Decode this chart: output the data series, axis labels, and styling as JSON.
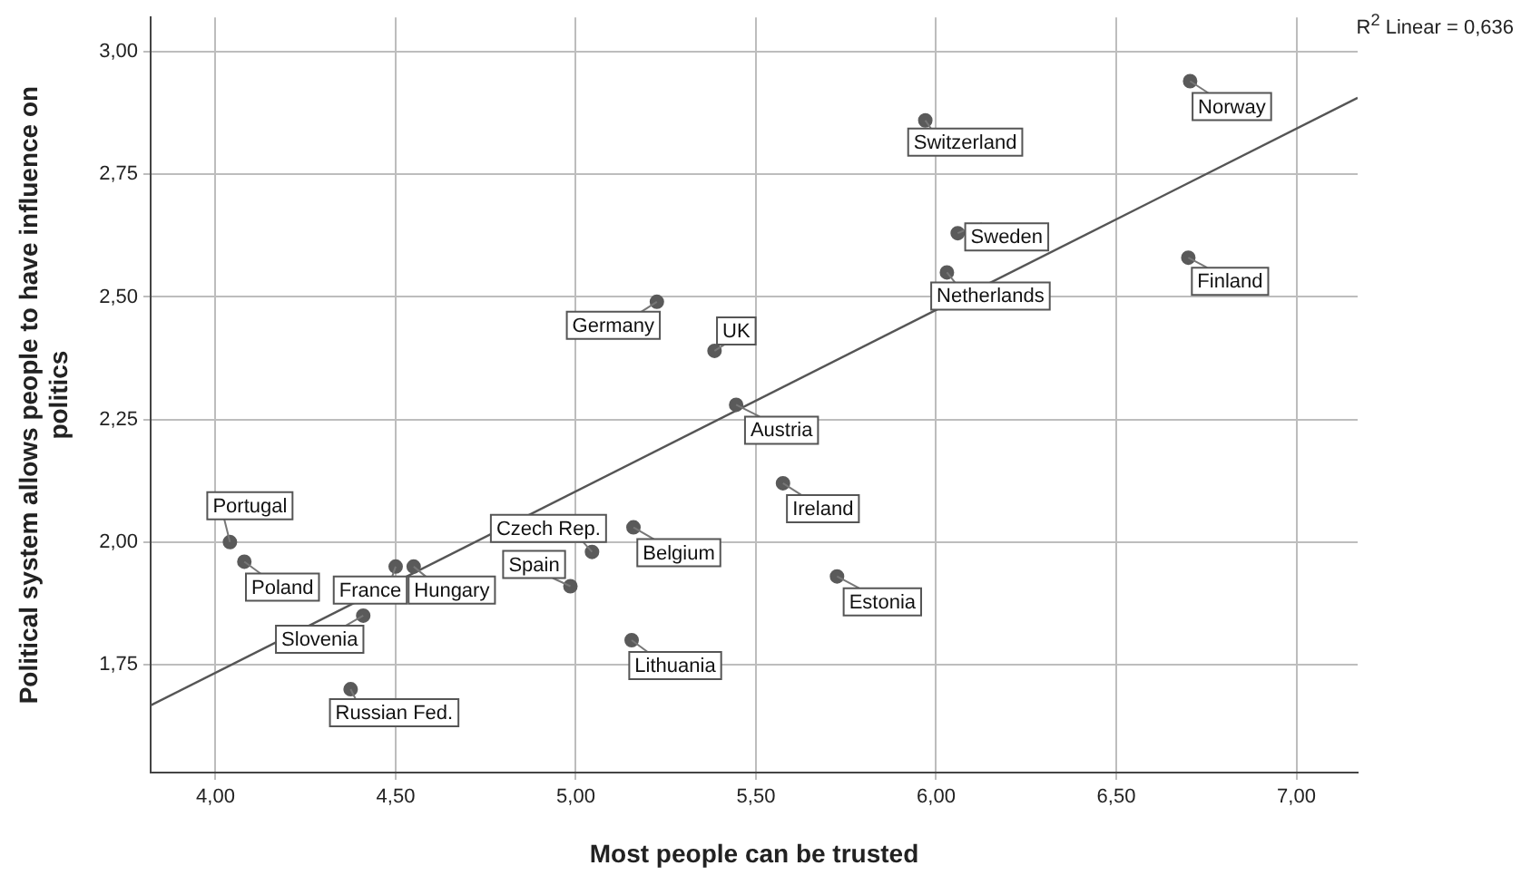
{
  "chart_data": {
    "type": "scatter",
    "xlabel": "Most people can be trusted",
    "ylabel": "Political system allows people to have influence on politics",
    "x": [
      6.705,
      5.97,
      6.06,
      6.03,
      6.7,
      5.225,
      5.385,
      5.445,
      5.575,
      5.725,
      5.16,
      5.045,
      4.985,
      5.155,
      4.04,
      4.08,
      4.5,
      4.55,
      4.41,
      4.375
    ],
    "series": [
      {
        "color": "#5a5a5a",
        "marker": "circle",
        "values": [
          2.94,
          2.86,
          2.63,
          2.55,
          2.58,
          2.49,
          2.39,
          2.28,
          2.12,
          1.93,
          2.03,
          1.98,
          1.91,
          1.8,
          2.0,
          1.96,
          1.95,
          1.95,
          1.85,
          1.7
        ]
      },
      {
        "type": "line",
        "marker": "none",
        "color": "#555555",
        "x": [
          3.82,
          7.17
        ],
        "values": [
          1.667,
          2.906
        ]
      }
    ],
    "xlim": [
      3.82,
      7.17
    ],
    "ylim": [
      1.53,
      3.07
    ],
    "xticks": [
      {
        "value": 4,
        "label": "4,00"
      },
      {
        "value": 4.5,
        "label": "4,50"
      },
      {
        "value": 5,
        "label": "5,00"
      },
      {
        "value": 5.5,
        "label": "5,50"
      },
      {
        "value": 6,
        "label": "6,00"
      },
      {
        "value": 6.5,
        "label": "6,50"
      },
      {
        "value": 7,
        "label": "7,00"
      }
    ],
    "yticks": [
      {
        "value": 1.75,
        "label": "1,75"
      },
      {
        "value": 2,
        "label": "2,00"
      },
      {
        "value": 2.25,
        "label": "2,25"
      },
      {
        "value": 2.5,
        "label": "2,50"
      },
      {
        "value": 2.75,
        "label": "2,75"
      },
      {
        "value": 3,
        "label": "3,00"
      }
    ],
    "grid": true,
    "legend": false,
    "annotations": [
      "R$^{2}$ Linear = 0,636",
      {
        "text": "Norway",
        "x": 6.705,
        "y": 2.94
      },
      {
        "text": "Switzerland",
        "x": 5.97,
        "y": 2.86
      },
      {
        "text": "Sweden",
        "x": 6.06,
        "y": 2.63
      },
      {
        "text": "Netherlands",
        "x": 6.03,
        "y": 2.55
      },
      {
        "text": "Finland",
        "x": 6.7,
        "y": 2.58
      },
      {
        "text": "Germany",
        "x": 5.225,
        "y": 2.49
      },
      {
        "text": "UK",
        "x": 5.385,
        "y": 2.39
      },
      {
        "text": "Austria",
        "x": 5.445,
        "y": 2.28
      },
      {
        "text": "Ireland",
        "x": 5.575,
        "y": 2.12
      },
      {
        "text": "Estonia",
        "x": 5.725,
        "y": 1.93
      },
      {
        "text": "Belgium",
        "x": 5.16,
        "y": 2.03
      },
      {
        "text": "Czech Rep.",
        "x": 5.045,
        "y": 1.98
      },
      {
        "text": "Spain",
        "x": 4.985,
        "y": 1.91
      },
      {
        "text": "Lithuania",
        "x": 5.155,
        "y": 1.8
      },
      {
        "text": "Portugal",
        "x": 4.04,
        "y": 2.0
      },
      {
        "text": "Poland",
        "x": 4.08,
        "y": 1.96
      },
      {
        "text": "France",
        "x": 4.5,
        "y": 1.95
      },
      {
        "text": "Hungary",
        "x": 4.55,
        "y": 1.95
      },
      {
        "text": "Slovenia",
        "x": 4.41,
        "y": 1.85
      },
      {
        "text": "Russian Fed.",
        "x": 4.375,
        "y": 1.7
      }
    ]
  }
}
